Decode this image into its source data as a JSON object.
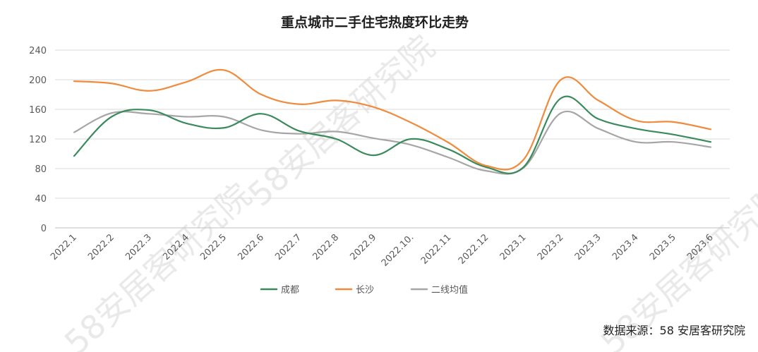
{
  "chart_data": {
    "type": "line",
    "title": "重点城市二手住宅热度环比走势",
    "xlabel": "",
    "ylabel": "",
    "ylim": [
      0,
      240
    ],
    "yticks": [
      0,
      40,
      80,
      120,
      160,
      200,
      240
    ],
    "grid": true,
    "legend_position": "bottom",
    "categories": [
      "2022.1",
      "2022.2",
      "2022.3",
      "2022.4",
      "2022.5",
      "2022.6",
      "2022.7",
      "2022.8",
      "2022.9",
      "2022.10.",
      "2022.11",
      "2022.12",
      "2023.1",
      "2023.2",
      "2023.3",
      "2023.4",
      "2023.5",
      "2023.6"
    ],
    "series": [
      {
        "name": "成都",
        "color": "#3a8a5c",
        "values": [
          97,
          150,
          159,
          141,
          135,
          154,
          131,
          120,
          98,
          120,
          106,
          82,
          82,
          175,
          147,
          134,
          126,
          116
        ]
      },
      {
        "name": "长沙",
        "color": "#f08a3c",
        "values": [
          198,
          195,
          185,
          197,
          213,
          180,
          167,
          172,
          163,
          142,
          115,
          84,
          92,
          200,
          172,
          145,
          143,
          133
        ]
      },
      {
        "name": "二线均值",
        "color": "#a6a6a6",
        "values": [
          129,
          155,
          154,
          150,
          150,
          132,
          127,
          130,
          121,
          112,
          95,
          77,
          81,
          155,
          134,
          116,
          116,
          109
        ]
      }
    ]
  },
  "watermark": "58安居客研究院",
  "source_note": "数据来源：58 安居客研究院"
}
